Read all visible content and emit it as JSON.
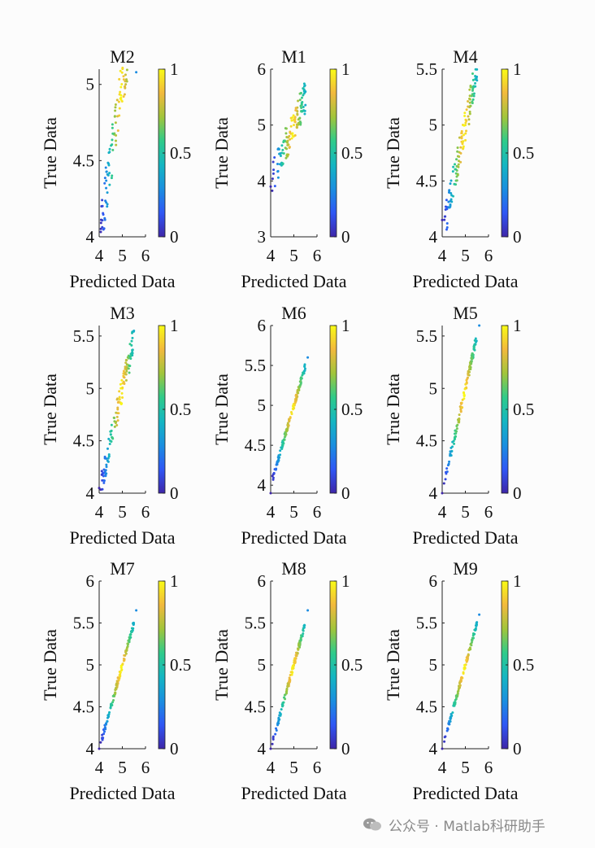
{
  "figure": {
    "panel_titles": [
      "M2",
      "M1",
      "M4",
      "M3",
      "M6",
      "M5",
      "M7",
      "M8",
      "M9"
    ]
  },
  "chart_data": [
    {
      "type": "scatter",
      "title": "M2",
      "xlabel": "Predicted Data",
      "ylabel": "True Data",
      "xlim": [
        4,
        6
      ],
      "ylim": [
        4,
        5.1
      ],
      "xticks": [
        "4",
        "5",
        "6"
      ],
      "yticks": [
        "4",
        "4.5",
        "5"
      ],
      "yticks_values": [
        4,
        4.5,
        5
      ],
      "colorbar": {
        "range": [
          0,
          1
        ],
        "ticks": [
          "0",
          "0.5",
          "1"
        ]
      },
      "points_seed": 2,
      "points_spread": 0.17,
      "points_count": 120,
      "sample_points": [
        [
          4.1,
          4.2
        ],
        [
          4.3,
          4.32
        ],
        [
          4.7,
          4.85
        ],
        [
          4.9,
          4.95
        ],
        [
          5.2,
          5.02
        ],
        [
          5.6,
          5.08
        ]
      ]
    },
    {
      "type": "scatter",
      "title": "M1",
      "xlabel": "Predicted Data",
      "ylabel": "True Data",
      "xlim": [
        4,
        6
      ],
      "ylim": [
        3,
        6
      ],
      "xticks": [
        "4",
        "5",
        "6"
      ],
      "yticks": [
        "3",
        "4",
        "5",
        "6"
      ],
      "yticks_values": [
        3,
        4,
        5,
        6
      ],
      "colorbar": {
        "range": [
          0,
          1
        ],
        "ticks": [
          "0",
          "0.5",
          "1"
        ]
      },
      "points_seed": 1,
      "points_spread": 0.3,
      "points_count": 120,
      "sample_points": [
        [
          4.0,
          3.9
        ],
        [
          4.4,
          4.3
        ],
        [
          4.8,
          4.8
        ],
        [
          5.0,
          5.0
        ],
        [
          5.2,
          5.1
        ],
        [
          5.5,
          5.6
        ]
      ]
    },
    {
      "type": "scatter",
      "title": "M4",
      "xlabel": "Predicted Data",
      "ylabel": "True Data",
      "xlim": [
        4,
        6
      ],
      "ylim": [
        4,
        5.5
      ],
      "xticks": [
        "4",
        "5",
        "6"
      ],
      "yticks": [
        "4",
        "4.5",
        "5",
        "5.5"
      ],
      "yticks_values": [
        4,
        4.5,
        5,
        5.5
      ],
      "colorbar": {
        "range": [
          0,
          1
        ],
        "ticks": [
          "0",
          "0.5",
          "1"
        ]
      },
      "points_seed": 4,
      "points_spread": 0.15,
      "points_count": 120,
      "sample_points": [
        [
          4.0,
          4.15
        ],
        [
          4.3,
          4.4
        ],
        [
          4.8,
          4.8
        ],
        [
          5.0,
          5.0
        ],
        [
          5.2,
          5.2
        ],
        [
          5.5,
          5.4
        ]
      ]
    },
    {
      "type": "scatter",
      "title": "M3",
      "xlabel": "Predicted Data",
      "ylabel": "True Data",
      "xlim": [
        4,
        6
      ],
      "ylim": [
        4,
        5.6
      ],
      "xticks": [
        "4",
        "5",
        "6"
      ],
      "yticks": [
        "4",
        "4.5",
        "5",
        "5.5"
      ],
      "yticks_values": [
        4,
        4.5,
        5,
        5.5
      ],
      "colorbar": {
        "range": [
          0,
          1
        ],
        "ticks": [
          "0",
          "0.5",
          "1"
        ]
      },
      "points_seed": 3,
      "points_spread": 0.12,
      "points_count": 120,
      "sample_points": [
        [
          4.0,
          4.05
        ],
        [
          4.4,
          4.3
        ],
        [
          4.8,
          4.8
        ],
        [
          5.0,
          5.0
        ],
        [
          5.3,
          5.15
        ],
        [
          5.5,
          5.55
        ]
      ]
    },
    {
      "type": "scatter",
      "title": "M6",
      "xlabel": "Predicted Data",
      "ylabel": "True Data",
      "xlim": [
        4,
        6
      ],
      "ylim": [
        3.9,
        6
      ],
      "xticks": [
        "4",
        "5",
        "6"
      ],
      "yticks": [
        "4",
        "4.5",
        "5",
        "5.5",
        "6"
      ],
      "yticks_values": [
        4,
        4.5,
        5,
        5.5,
        6
      ],
      "colorbar": {
        "range": [
          0,
          1
        ],
        "ticks": [
          "0",
          "0.5",
          "1"
        ]
      },
      "points_seed": 6,
      "points_spread": 0.04,
      "points_count": 120,
      "sample_points": [
        [
          4.0,
          3.9
        ],
        [
          4.3,
          4.3
        ],
        [
          4.8,
          4.8
        ],
        [
          5.0,
          5.0
        ],
        [
          5.3,
          5.3
        ],
        [
          5.6,
          5.6
        ]
      ]
    },
    {
      "type": "scatter",
      "title": "M5",
      "xlabel": "Predicted Data",
      "ylabel": "True Data",
      "xlim": [
        4,
        6
      ],
      "ylim": [
        4,
        5.6
      ],
      "xticks": [
        "4",
        "5",
        "6"
      ],
      "yticks": [
        "4",
        "4.5",
        "5",
        "5.5"
      ],
      "yticks_values": [
        4,
        4.5,
        5,
        5.5
      ],
      "colorbar": {
        "range": [
          0,
          1
        ],
        "ticks": [
          "0",
          "0.5",
          "1"
        ]
      },
      "points_seed": 5,
      "points_spread": 0.05,
      "points_count": 120,
      "sample_points": [
        [
          4.0,
          4.0
        ],
        [
          4.3,
          4.3
        ],
        [
          4.8,
          4.8
        ],
        [
          5.0,
          5.0
        ],
        [
          5.3,
          5.3
        ],
        [
          5.6,
          5.6
        ]
      ]
    },
    {
      "type": "scatter",
      "title": "M7",
      "xlabel": "Predicted Data",
      "ylabel": "True Data",
      "xlim": [
        4,
        6
      ],
      "ylim": [
        4,
        6
      ],
      "xticks": [
        "4",
        "5",
        "6"
      ],
      "yticks": [
        "4",
        "4.5",
        "5",
        "5.5",
        "6"
      ],
      "yticks_values": [
        4,
        4.5,
        5,
        5.5,
        6
      ],
      "colorbar": {
        "range": [
          0,
          1
        ],
        "ticks": [
          "0",
          "0.5",
          "1"
        ]
      },
      "points_seed": 7,
      "points_spread": 0.04,
      "points_count": 120,
      "sample_points": [
        [
          4.0,
          4.0
        ],
        [
          4.3,
          4.3
        ],
        [
          4.8,
          4.8
        ],
        [
          5.0,
          5.0
        ],
        [
          5.3,
          5.3
        ],
        [
          5.6,
          5.65
        ]
      ]
    },
    {
      "type": "scatter",
      "title": "M8",
      "xlabel": "Predicted Data",
      "ylabel": "True Data",
      "xlim": [
        4,
        6
      ],
      "ylim": [
        4,
        6
      ],
      "xticks": [
        "4",
        "5",
        "6"
      ],
      "yticks": [
        "4",
        "4.5",
        "5",
        "5.5",
        "6"
      ],
      "yticks_values": [
        4,
        4.5,
        5,
        5.5,
        6
      ],
      "colorbar": {
        "range": [
          0,
          1
        ],
        "ticks": [
          "0",
          "0.5",
          "1"
        ]
      },
      "points_seed": 8,
      "points_spread": 0.04,
      "points_count": 120,
      "sample_points": [
        [
          4.0,
          4.0
        ],
        [
          4.3,
          4.3
        ],
        [
          4.8,
          4.8
        ],
        [
          5.0,
          5.0
        ],
        [
          5.3,
          5.3
        ],
        [
          5.6,
          5.65
        ]
      ]
    },
    {
      "type": "scatter",
      "title": "M9",
      "xlabel": "Predicted Data",
      "ylabel": "True Data",
      "xlim": [
        4,
        6
      ],
      "ylim": [
        4,
        6
      ],
      "xticks": [
        "4",
        "5",
        "6"
      ],
      "yticks": [
        "4",
        "4.5",
        "5",
        "5.5",
        "6"
      ],
      "yticks_values": [
        4,
        4.5,
        5,
        5.5,
        6
      ],
      "colorbar": {
        "range": [
          0,
          1
        ],
        "ticks": [
          "0",
          "0.5",
          "1"
        ]
      },
      "points_seed": 9,
      "points_spread": 0.03,
      "points_count": 120,
      "sample_points": [
        [
          4.0,
          4.0
        ],
        [
          4.3,
          4.3
        ],
        [
          4.8,
          4.8
        ],
        [
          5.0,
          5.0
        ],
        [
          5.3,
          5.3
        ],
        [
          5.6,
          5.6
        ]
      ]
    }
  ],
  "colormap": [
    "#3e26a8",
    "#2f57f5",
    "#1a8fe0",
    "#14b6c2",
    "#2fcb8a",
    "#a1c53b",
    "#f2b93d",
    "#f9fb15"
  ],
  "watermark": {
    "text": "公众号 · Matlab科研助手",
    "icon": "wechat-icon"
  }
}
